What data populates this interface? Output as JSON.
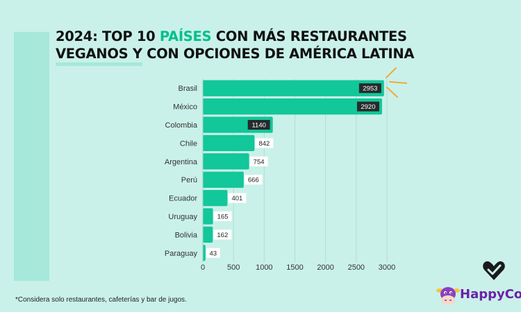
{
  "title": {
    "line1_before": "2024: TOP 10 ",
    "line1_accent": "PAÍSES",
    "line1_after": " CON MÁS RESTAURANTES",
    "line2": "VEGANOS Y CON OPCIONES DE AMÉRICA LATINA"
  },
  "footnote": "*Considera solo restaurantes, cafeterías y bar de jugos.",
  "brand": {
    "name": "HappyCow",
    "visible_text": "HappyCov"
  },
  "colors": {
    "background": "#c9f1e9",
    "bar": "#12c79a",
    "accent_text": "#00c08b",
    "label_dark_bg": "#262b2b",
    "label_light_bg": "#ffffff",
    "arrow": "#f0a93b",
    "brand_purple": "#6b21a8"
  },
  "chart_data": {
    "type": "bar",
    "orientation": "horizontal",
    "categories": [
      "Brasil",
      "México",
      "Colombia",
      "Chile",
      "Argentina",
      "Perú",
      "Ecuador",
      "Uruguay",
      "Bolivia",
      "Paraguay"
    ],
    "values": [
      2953,
      2920,
      1140,
      842,
      754,
      666,
      401,
      165,
      162,
      43
    ],
    "xlim": [
      0,
      3000
    ],
    "xticks": [
      0,
      500,
      1000,
      1500,
      2000,
      2500,
      3000
    ],
    "grid": true,
    "xlabel": "",
    "ylabel": ""
  }
}
